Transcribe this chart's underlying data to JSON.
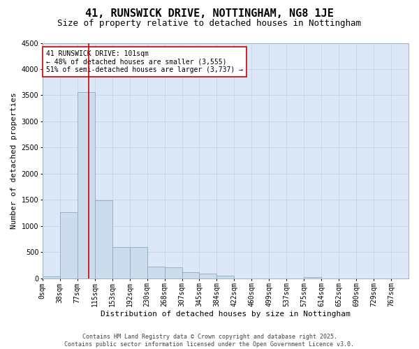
{
  "title": "41, RUNSWICK DRIVE, NOTTINGHAM, NG8 1JE",
  "subtitle": "Size of property relative to detached houses in Nottingham",
  "xlabel": "Distribution of detached houses by size in Nottingham",
  "ylabel": "Number of detached properties",
  "bins": [
    "0sqm",
    "38sqm",
    "77sqm",
    "115sqm",
    "153sqm",
    "192sqm",
    "230sqm",
    "268sqm",
    "307sqm",
    "345sqm",
    "384sqm",
    "422sqm",
    "460sqm",
    "499sqm",
    "537sqm",
    "575sqm",
    "614sqm",
    "652sqm",
    "690sqm",
    "729sqm",
    "767sqm"
  ],
  "bar_heights": [
    30,
    1260,
    3560,
    1490,
    600,
    590,
    220,
    215,
    115,
    90,
    55,
    0,
    0,
    0,
    0,
    25,
    0,
    0,
    0,
    0,
    0
  ],
  "bar_color": "#cddcec",
  "bar_edge_color": "#8aaac8",
  "grid_color": "#c8d4e4",
  "plot_bg_color": "#dce8f8",
  "fig_bg_color": "#ffffff",
  "vline_color": "#cc0000",
  "vline_position": 2.63,
  "annotation_title": "41 RUNSWICK DRIVE: 101sqm",
  "annotation_line1": "← 48% of detached houses are smaller (3,555)",
  "annotation_line2": "51% of semi-detached houses are larger (3,737) →",
  "annotation_box_facecolor": "#ffffff",
  "annotation_box_edgecolor": "#cc0000",
  "ylim": [
    0,
    4500
  ],
  "yticks": [
    0,
    500,
    1000,
    1500,
    2000,
    2500,
    3000,
    3500,
    4000,
    4500
  ],
  "footer1": "Contains HM Land Registry data © Crown copyright and database right 2025.",
  "footer2": "Contains public sector information licensed under the Open Government Licence v3.0.",
  "title_fontsize": 11,
  "subtitle_fontsize": 9,
  "tick_fontsize": 7,
  "ylabel_fontsize": 8,
  "xlabel_fontsize": 8,
  "annotation_fontsize": 7,
  "footer_fontsize": 6
}
